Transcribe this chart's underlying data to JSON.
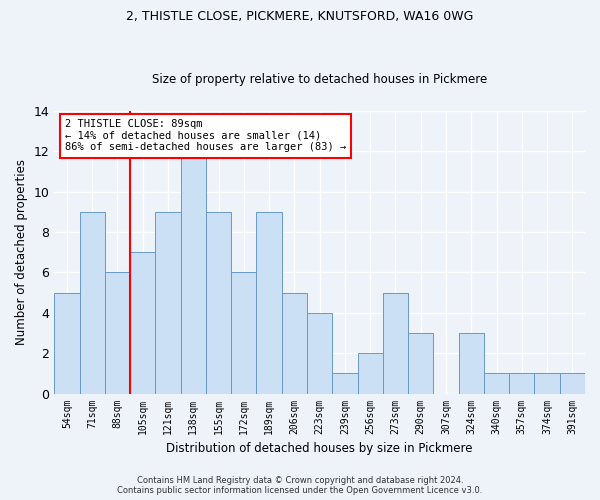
{
  "title1": "2, THISTLE CLOSE, PICKMERE, KNUTSFORD, WA16 0WG",
  "title2": "Size of property relative to detached houses in Pickmere",
  "xlabel": "Distribution of detached houses by size in Pickmere",
  "ylabel": "Number of detached properties",
  "categories": [
    "54sqm",
    "71sqm",
    "88sqm",
    "105sqm",
    "121sqm",
    "138sqm",
    "155sqm",
    "172sqm",
    "189sqm",
    "206sqm",
    "223sqm",
    "239sqm",
    "256sqm",
    "273sqm",
    "290sqm",
    "307sqm",
    "324sqm",
    "340sqm",
    "357sqm",
    "374sqm",
    "391sqm"
  ],
  "values": [
    5,
    9,
    6,
    7,
    9,
    12,
    9,
    6,
    9,
    5,
    4,
    1,
    2,
    5,
    3,
    0,
    3,
    1,
    1,
    1,
    1
  ],
  "bar_color": "#cce0f5",
  "bar_edge_color": "#6699cc",
  "red_line_index": 2,
  "annotation_text": "2 THISTLE CLOSE: 89sqm\n← 14% of detached houses are smaller (14)\n86% of semi-detached houses are larger (83) →",
  "annotation_box_color": "white",
  "annotation_box_edge": "red",
  "footer1": "Contains HM Land Registry data © Crown copyright and database right 2024.",
  "footer2": "Contains public sector information licensed under the Open Government Licence v3.0.",
  "ylim": [
    0,
    14
  ],
  "background_color": "#eef2f9",
  "grid_color": "white"
}
